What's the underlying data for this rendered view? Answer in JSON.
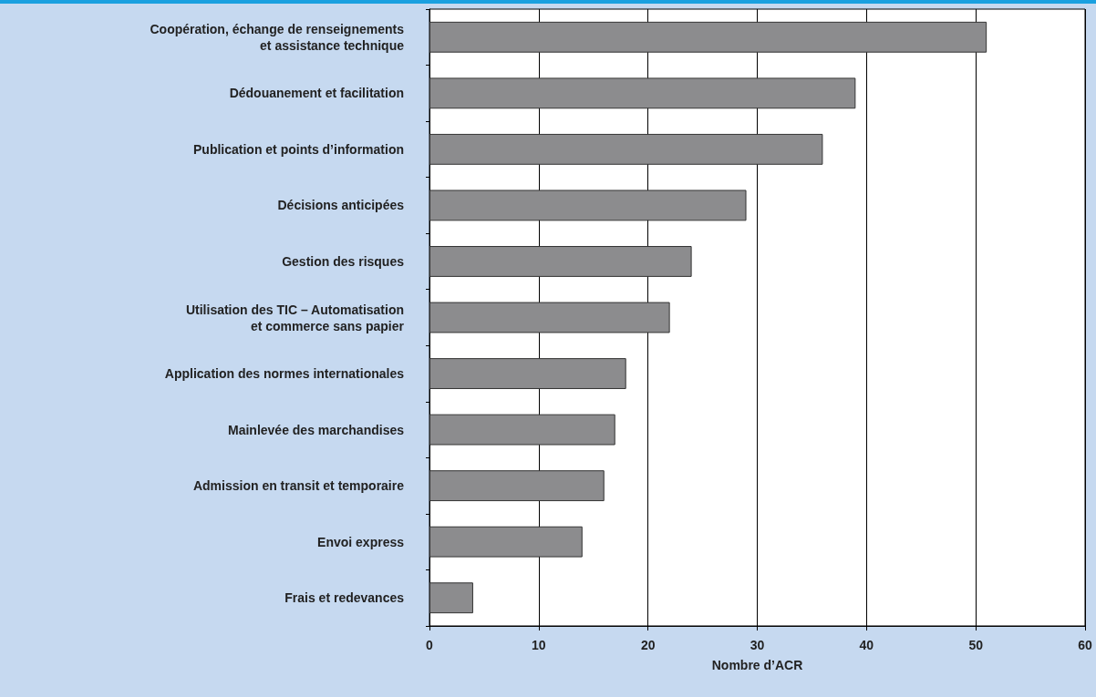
{
  "chart_data": {
    "type": "bar",
    "orientation": "horizontal",
    "xlabel": "Nombre d’ACR",
    "categories": [
      "Coopération, échange de renseignements\net assistance technique",
      "Dédouanement et facilitation",
      "Publication et points d’information",
      "Décisions anticipées",
      "Gestion des risques",
      "Utilisation des TIC – Automatisation\net commerce sans papier",
      "Application des normes internationales",
      "Mainlevée des marchandises",
      "Admission en transit et temporaire",
      "Envoi express",
      "Frais et redevances"
    ],
    "values": [
      51,
      39,
      36,
      29,
      24,
      22,
      18,
      17,
      16,
      14,
      4
    ],
    "color": "#8c8c8e",
    "xlim": [
      0,
      60
    ],
    "xticks": [
      0,
      10,
      20,
      30,
      40,
      50,
      60
    ],
    "grid": "x"
  }
}
